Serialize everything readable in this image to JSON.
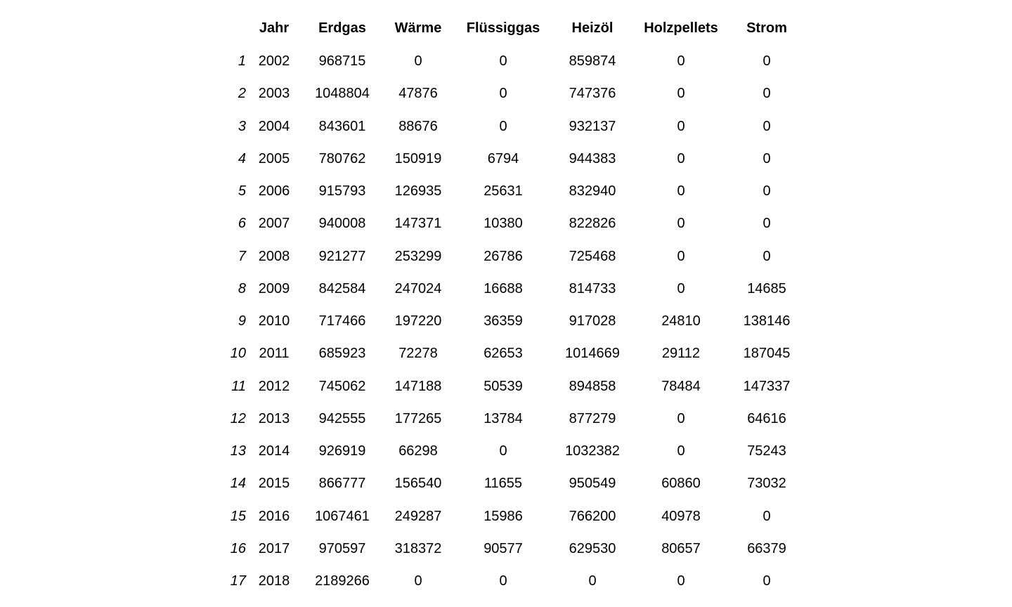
{
  "table": {
    "columns": [
      "",
      "Jahr",
      "Erdgas",
      "Wärme",
      "Flüssiggas",
      "Heizöl",
      "Holzpellets",
      "Strom"
    ],
    "rows": [
      [
        "1",
        "2002",
        "968715",
        "0",
        "0",
        "859874",
        "0",
        "0"
      ],
      [
        "2",
        "2003",
        "1048804",
        "47876",
        "0",
        "747376",
        "0",
        "0"
      ],
      [
        "3",
        "2004",
        "843601",
        "88676",
        "0",
        "932137",
        "0",
        "0"
      ],
      [
        "4",
        "2005",
        "780762",
        "150919",
        "6794",
        "944383",
        "0",
        "0"
      ],
      [
        "5",
        "2006",
        "915793",
        "126935",
        "25631",
        "832940",
        "0",
        "0"
      ],
      [
        "6",
        "2007",
        "940008",
        "147371",
        "10380",
        "822826",
        "0",
        "0"
      ],
      [
        "7",
        "2008",
        "921277",
        "253299",
        "26786",
        "725468",
        "0",
        "0"
      ],
      [
        "8",
        "2009",
        "842584",
        "247024",
        "16688",
        "814733",
        "0",
        "14685"
      ],
      [
        "9",
        "2010",
        "717466",
        "197220",
        "36359",
        "917028",
        "24810",
        "138146"
      ],
      [
        "10",
        "2011",
        "685923",
        "72278",
        "62653",
        "1014669",
        "29112",
        "187045"
      ],
      [
        "11",
        "2012",
        "745062",
        "147188",
        "50539",
        "894858",
        "78484",
        "147337"
      ],
      [
        "12",
        "2013",
        "942555",
        "177265",
        "13784",
        "877279",
        "0",
        "64616"
      ],
      [
        "13",
        "2014",
        "926919",
        "66298",
        "0",
        "1032382",
        "0",
        "75243"
      ],
      [
        "14",
        "2015",
        "866777",
        "156540",
        "11655",
        "950549",
        "60860",
        "73032"
      ],
      [
        "15",
        "2016",
        "1067461",
        "249287",
        "15986",
        "766200",
        "40978",
        "0"
      ],
      [
        "16",
        "2017",
        "970597",
        "318372",
        "90577",
        "629530",
        "80657",
        "66379"
      ],
      [
        "17",
        "2018",
        "2189266",
        "0",
        "0",
        "0",
        "0",
        "0"
      ]
    ]
  }
}
